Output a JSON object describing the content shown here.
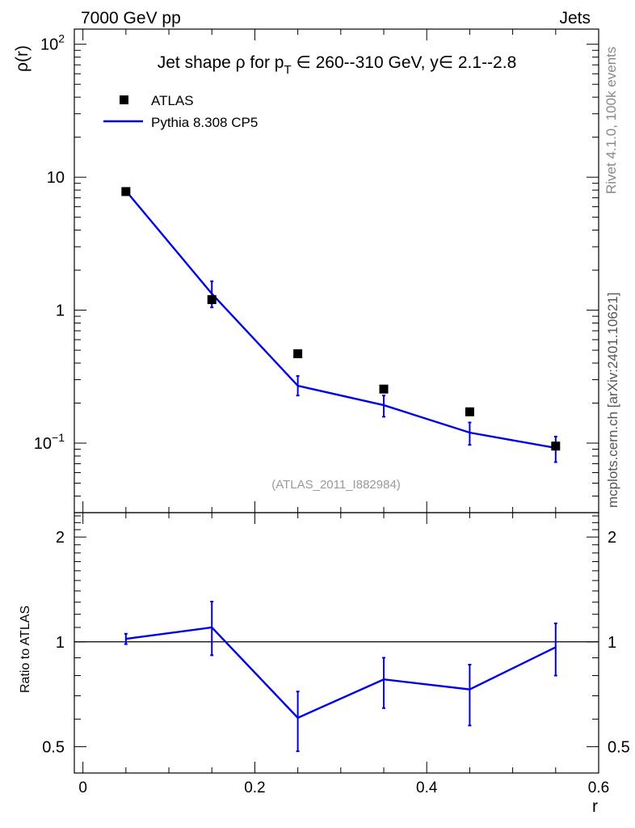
{
  "header": {
    "left": "7000 GeV pp",
    "right": "Jets"
  },
  "side_labels": {
    "rivet": "Rivet 4.1.0,  100k events",
    "site": "mcplots.cern.ch [arXiv:2401.10621]"
  },
  "colors": {
    "data": "#000000",
    "mc": "#0000e6",
    "watermark": "#999999",
    "side_text": "#888888"
  },
  "chart_data": [
    {
      "type": "scatter",
      "panel": "main",
      "title_prefix": "Jet shape ρ for p",
      "title_sub": "T",
      "title_suffix": " ∈ 260--310 GeV, y∈ 2.1--2.8",
      "ylabel": "ρ(r)",
      "yscale": "log",
      "ylim": [
        0.03,
        130
      ],
      "xlim": [
        -0.01,
        0.6
      ],
      "watermark": "(ATLAS_2011_I882984)",
      "y_ticks": [
        {
          "value": 100,
          "base": "10",
          "exp": "2"
        },
        {
          "value": 10,
          "base": "10",
          "exp": ""
        },
        {
          "value": 1,
          "base": "1",
          "exp": ""
        },
        {
          "value": 0.1,
          "base": "10",
          "exp": "−1"
        }
      ],
      "series": [
        {
          "name": "ATLAS",
          "kind": "points",
          "x": [
            0.05,
            0.15,
            0.25,
            0.35,
            0.45,
            0.55
          ],
          "y": [
            7.8,
            1.2,
            0.47,
            0.255,
            0.172,
            0.095
          ]
        },
        {
          "name": "Pythia 8.308 CP5",
          "kind": "line",
          "x": [
            0.05,
            0.15,
            0.25,
            0.35,
            0.45,
            0.55
          ],
          "y": [
            7.9,
            1.33,
            0.27,
            0.193,
            0.12,
            0.092
          ],
          "err_lo": [
            7.6,
            1.05,
            0.228,
            0.158,
            0.097,
            0.072
          ],
          "err_hi": [
            8.2,
            1.65,
            0.32,
            0.228,
            0.143,
            0.112
          ]
        }
      ]
    },
    {
      "type": "line",
      "panel": "ratio",
      "ylabel": "Ratio to ATLAS",
      "xlabel": "r",
      "ylim": [
        0.42,
        2.35
      ],
      "yscale": "log",
      "reference": 1,
      "x_ticks": [
        {
          "value": 0,
          "label": "0"
        },
        {
          "value": 0.2,
          "label": "0.2"
        },
        {
          "value": 0.4,
          "label": "0.4"
        },
        {
          "value": 0.6,
          "label": "0.6"
        }
      ],
      "y_ticks": [
        {
          "value": 2,
          "label": "2"
        },
        {
          "value": 1,
          "label": "1"
        },
        {
          "value": 0.5,
          "label": "0.5"
        }
      ],
      "series": [
        {
          "name": "Pythia 8.308 CP5",
          "x": [
            0.05,
            0.15,
            0.25,
            0.35,
            0.45,
            0.55
          ],
          "y": [
            1.02,
            1.1,
            0.605,
            0.78,
            0.73,
            0.965
          ],
          "err_lo": [
            0.985,
            0.915,
            0.485,
            0.645,
            0.575,
            0.8
          ],
          "err_hi": [
            1.055,
            1.305,
            0.72,
            0.9,
            0.86,
            1.13
          ]
        }
      ]
    }
  ]
}
